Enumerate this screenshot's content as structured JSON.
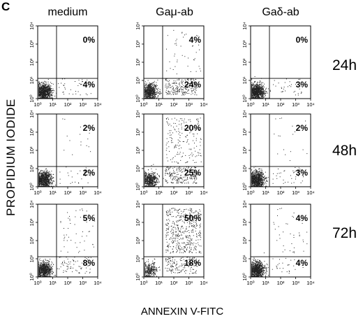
{
  "panel_letter": "C",
  "columns": [
    "medium",
    "Gaμ-ab",
    "Gaδ-ab"
  ],
  "rows": [
    "24h",
    "48h",
    "72h"
  ],
  "ylabel": "PROPIDIUM IODIDE",
  "xlabel": "ANNEXIN V-FITC",
  "chart_data": {
    "type": "scatter",
    "subtype": "flow-cytometry-quadrant-dot-plot-grid",
    "x_axis": {
      "label": "ANNEXIN V-FITC",
      "scale": "log",
      "range": [
        1,
        10000
      ],
      "tick_labels": [
        "10⁰",
        "10¹",
        "10²",
        "10³",
        "10⁴"
      ]
    },
    "y_axis": {
      "label": "PROPIDIUM IODIDE",
      "scale": "log",
      "range": [
        1,
        10000
      ],
      "tick_labels": [
        "10⁰",
        "10¹",
        "10²",
        "10³",
        "10⁴"
      ]
    },
    "columns": [
      "medium",
      "Gaμ-ab",
      "Gaδ-ab"
    ],
    "rows": [
      "24h",
      "48h",
      "72h"
    ],
    "panels": [
      {
        "row": "24h",
        "column": "medium",
        "gate_x": 18,
        "gate_y": 13,
        "upper_right": "0%",
        "lower_right": "4%"
      },
      {
        "row": "24h",
        "column": "Gaμ-ab",
        "gate_x": 18,
        "gate_y": 13,
        "upper_right": "4%",
        "lower_right": "24%"
      },
      {
        "row": "24h",
        "column": "Gaδ-ab",
        "gate_x": 18,
        "gate_y": 13,
        "upper_right": "0%",
        "lower_right": "3%"
      },
      {
        "row": "48h",
        "column": "medium",
        "gate_x": 18,
        "gate_y": 13,
        "upper_right": "2%",
        "lower_right": "2%"
      },
      {
        "row": "48h",
        "column": "Gaμ-ab",
        "gate_x": 18,
        "gate_y": 13,
        "upper_right": "20%",
        "lower_right": "25%"
      },
      {
        "row": "48h",
        "column": "Gaδ-ab",
        "gate_x": 18,
        "gate_y": 13,
        "upper_right": "2%",
        "lower_right": "3%"
      },
      {
        "row": "72h",
        "column": "medium",
        "gate_x": 18,
        "gate_y": 13,
        "upper_right": "5%",
        "lower_right": "8%"
      },
      {
        "row": "72h",
        "column": "Gaμ-ab",
        "gate_x": 18,
        "gate_y": 13,
        "upper_right": "50%",
        "lower_right": "18%"
      },
      {
        "row": "72h",
        "column": "Gaδ-ab",
        "gate_x": 18,
        "gate_y": 13,
        "upper_right": "4%",
        "lower_right": "4%"
      }
    ],
    "grid": false,
    "legend": "none"
  }
}
